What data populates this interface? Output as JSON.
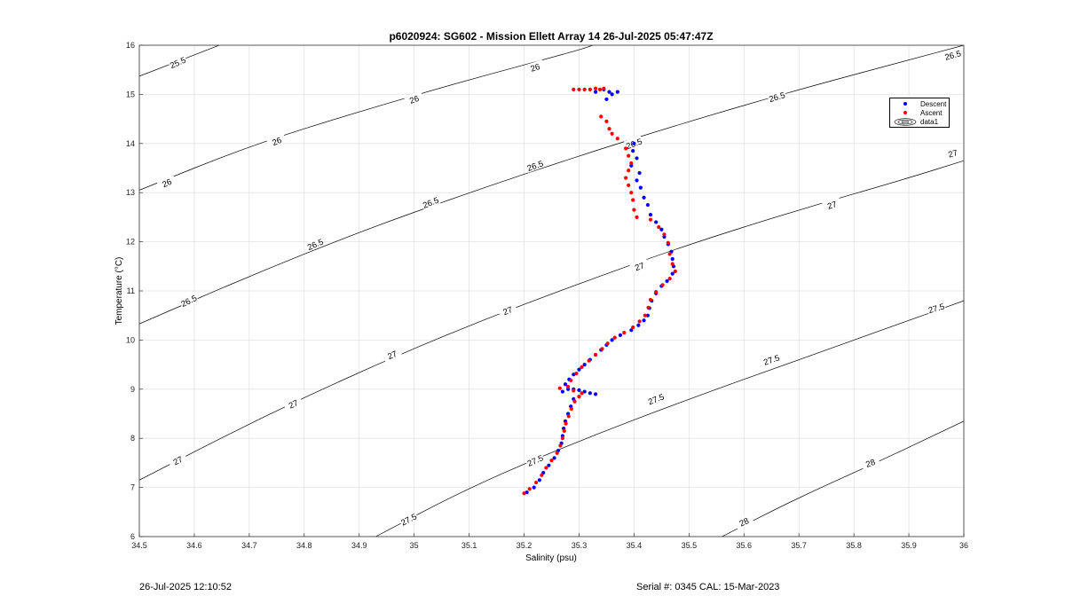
{
  "chart_data": {
    "type": "scatter",
    "title": "p6020924: SG602 - Mission Ellett Array 14 26-Jul-2025 05:47:47Z",
    "xlabel": "Salinity (psu)",
    "ylabel": "Temperature (°C)",
    "xlim": [
      34.5,
      36
    ],
    "ylim": [
      6,
      16
    ],
    "xticks": [
      "34.5",
      "34.6",
      "34.7",
      "34.8",
      "34.9",
      "35",
      "35.1",
      "35.2",
      "35.3",
      "35.4",
      "35.5",
      "35.6",
      "35.7",
      "35.8",
      "35.9",
      "36"
    ],
    "yticks": [
      "6",
      "7",
      "8",
      "9",
      "10",
      "11",
      "12",
      "13",
      "14",
      "15",
      "16"
    ],
    "grid": true,
    "legend_position": "top-right",
    "series": [
      {
        "name": "Descent",
        "color": "#0000ff",
        "points": [
          [
            35.33,
            15.05
          ],
          [
            35.345,
            15.1
          ],
          [
            35.355,
            15.05
          ],
          [
            35.37,
            15.05
          ],
          [
            35.36,
            15.0
          ],
          [
            35.35,
            14.9
          ],
          [
            35.4,
            14.0
          ],
          [
            35.398,
            13.85
          ],
          [
            35.405,
            13.7
          ],
          [
            35.395,
            13.55
          ],
          [
            35.41,
            13.4
          ],
          [
            35.405,
            13.25
          ],
          [
            35.412,
            13.1
          ],
          [
            35.418,
            12.9
          ],
          [
            35.425,
            12.75
          ],
          [
            35.43,
            12.55
          ],
          [
            35.44,
            12.4
          ],
          [
            35.45,
            12.25
          ],
          [
            35.455,
            12.1
          ],
          [
            35.462,
            11.95
          ],
          [
            35.468,
            11.8
          ],
          [
            35.47,
            11.65
          ],
          [
            35.472,
            11.5
          ],
          [
            35.47,
            11.35
          ],
          [
            35.46,
            11.2
          ],
          [
            35.45,
            11.1
          ],
          [
            35.44,
            10.95
          ],
          [
            35.432,
            10.8
          ],
          [
            35.428,
            10.65
          ],
          [
            35.425,
            10.5
          ],
          [
            35.418,
            10.4
          ],
          [
            35.408,
            10.3
          ],
          [
            35.395,
            10.2
          ],
          [
            35.375,
            10.1
          ],
          [
            35.36,
            10.0
          ],
          [
            35.35,
            9.9
          ],
          [
            35.34,
            9.8
          ],
          [
            35.33,
            9.7
          ],
          [
            35.32,
            9.6
          ],
          [
            35.31,
            9.5
          ],
          [
            35.3,
            9.4
          ],
          [
            35.29,
            9.3
          ],
          [
            35.282,
            9.2
          ],
          [
            35.275,
            9.1
          ],
          [
            35.28,
            9.0
          ],
          [
            35.29,
            9.0
          ],
          [
            35.3,
            8.98
          ],
          [
            35.31,
            8.95
          ],
          [
            35.32,
            8.92
          ],
          [
            35.33,
            8.9
          ],
          [
            35.27,
            8.95
          ],
          [
            35.29,
            8.8
          ],
          [
            35.285,
            8.65
          ],
          [
            35.28,
            8.5
          ],
          [
            35.275,
            8.35
          ],
          [
            35.272,
            8.2
          ],
          [
            35.27,
            8.05
          ],
          [
            35.268,
            7.9
          ],
          [
            35.262,
            7.75
          ],
          [
            35.255,
            7.6
          ],
          [
            35.245,
            7.45
          ],
          [
            35.235,
            7.3
          ],
          [
            35.228,
            7.15
          ],
          [
            35.218,
            7.0
          ],
          [
            35.205,
            6.9
          ]
        ]
      },
      {
        "name": "Ascent",
        "color": "#ff0000",
        "points": [
          [
            35.29,
            15.1
          ],
          [
            35.3,
            15.1
          ],
          [
            35.31,
            15.1
          ],
          [
            35.32,
            15.1
          ],
          [
            35.33,
            15.12
          ],
          [
            35.338,
            15.1
          ],
          [
            35.345,
            15.12
          ],
          [
            35.34,
            14.55
          ],
          [
            35.35,
            14.45
          ],
          [
            35.355,
            14.3
          ],
          [
            35.36,
            14.2
          ],
          [
            35.37,
            14.1
          ],
          [
            35.385,
            13.9
          ],
          [
            35.39,
            13.75
          ],
          [
            35.395,
            13.6
          ],
          [
            35.39,
            13.45
          ],
          [
            35.385,
            13.3
          ],
          [
            35.39,
            13.15
          ],
          [
            35.395,
            13.0
          ],
          [
            35.398,
            12.85
          ],
          [
            35.4,
            12.65
          ],
          [
            35.405,
            12.5
          ],
          [
            35.43,
            12.45
          ],
          [
            35.445,
            12.3
          ],
          [
            35.455,
            12.15
          ],
          [
            35.462,
            11.98
          ],
          [
            35.465,
            11.75
          ],
          [
            35.47,
            11.55
          ],
          [
            35.475,
            11.4
          ],
          [
            35.465,
            11.25
          ],
          [
            35.452,
            11.12
          ],
          [
            35.44,
            10.98
          ],
          [
            35.43,
            10.82
          ],
          [
            35.426,
            10.66
          ],
          [
            35.42,
            10.5
          ],
          [
            35.41,
            10.38
          ],
          [
            35.398,
            10.26
          ],
          [
            35.382,
            10.15
          ],
          [
            35.365,
            10.05
          ],
          [
            35.352,
            9.93
          ],
          [
            35.342,
            9.82
          ],
          [
            35.33,
            9.7
          ],
          [
            35.318,
            9.58
          ],
          [
            35.305,
            9.45
          ],
          [
            35.295,
            9.32
          ],
          [
            35.285,
            9.18
          ],
          [
            35.28,
            9.05
          ],
          [
            35.265,
            9.02
          ],
          [
            35.29,
            8.97
          ],
          [
            35.305,
            8.92
          ],
          [
            35.3,
            8.85
          ],
          [
            35.292,
            8.75
          ],
          [
            35.286,
            8.6
          ],
          [
            35.281,
            8.45
          ],
          [
            35.276,
            8.3
          ],
          [
            35.273,
            8.15
          ],
          [
            35.27,
            8.0
          ],
          [
            35.266,
            7.85
          ],
          [
            35.26,
            7.7
          ],
          [
            35.25,
            7.55
          ],
          [
            35.24,
            7.4
          ],
          [
            35.232,
            7.25
          ],
          [
            35.222,
            7.1
          ],
          [
            35.21,
            6.97
          ],
          [
            35.2,
            6.88
          ]
        ]
      }
    ],
    "contours": [
      {
        "label": "25.5",
        "points": [
          [
            34.5,
            15.37
          ],
          [
            34.65,
            16.02
          ]
        ],
        "labels_at": [
          [
            34.57,
            15.65,
            24
          ]
        ]
      },
      {
        "label": "26",
        "points": [
          [
            34.5,
            13.05
          ],
          [
            34.7,
            13.95
          ],
          [
            34.9,
            14.65
          ],
          [
            35.1,
            15.3
          ],
          [
            35.3,
            15.9
          ],
          [
            35.33,
            16.02
          ]
        ],
        "labels_at": [
          [
            34.55,
            13.2,
            24
          ],
          [
            34.75,
            14.05,
            22
          ],
          [
            35.0,
            14.9,
            20
          ],
          [
            35.22,
            15.55,
            18
          ]
        ]
      },
      {
        "label": "26.5",
        "points": [
          [
            34.5,
            10.33
          ],
          [
            34.7,
            11.3
          ],
          [
            34.9,
            12.2
          ],
          [
            35.1,
            13.0
          ],
          [
            35.3,
            13.75
          ],
          [
            35.5,
            14.45
          ],
          [
            35.7,
            15.1
          ],
          [
            35.9,
            15.7
          ],
          [
            36.0,
            16.0
          ]
        ],
        "labels_at": [
          [
            34.59,
            10.8,
            26
          ],
          [
            34.82,
            11.95,
            24
          ],
          [
            35.03,
            12.8,
            22
          ],
          [
            35.22,
            13.55,
            20
          ],
          [
            35.4,
            14.0,
            20
          ],
          [
            35.66,
            14.95,
            17
          ],
          [
            35.98,
            15.8,
            15
          ]
        ]
      },
      {
        "label": "27",
        "points": [
          [
            34.5,
            7.15
          ],
          [
            34.7,
            8.3
          ],
          [
            34.9,
            9.35
          ],
          [
            35.1,
            10.3
          ],
          [
            35.3,
            11.15
          ],
          [
            35.5,
            11.95
          ],
          [
            35.7,
            12.65
          ],
          [
            35.9,
            13.3
          ],
          [
            36.0,
            13.65
          ]
        ],
        "labels_at": [
          [
            34.57,
            7.55,
            27
          ],
          [
            34.78,
            8.7,
            25
          ],
          [
            34.96,
            9.7,
            23
          ],
          [
            35.17,
            10.6,
            21
          ],
          [
            35.41,
            11.5,
            20
          ],
          [
            35.76,
            12.75,
            17
          ],
          [
            35.98,
            13.8,
            15
          ]
        ]
      },
      {
        "label": "27.5",
        "points": [
          [
            34.93,
            6.0
          ],
          [
            35.1,
            7.0
          ],
          [
            35.3,
            7.95
          ],
          [
            35.5,
            8.8
          ],
          [
            35.7,
            9.6
          ],
          [
            35.9,
            10.4
          ],
          [
            36.0,
            10.8
          ]
        ],
        "labels_at": [
          [
            34.99,
            6.35,
            27
          ],
          [
            35.22,
            7.55,
            24
          ],
          [
            35.44,
            8.8,
            21
          ],
          [
            35.65,
            9.6,
            19
          ],
          [
            35.95,
            10.65,
            16
          ]
        ]
      },
      {
        "label": "28",
        "points": [
          [
            35.56,
            6.0
          ],
          [
            35.7,
            6.8
          ],
          [
            35.85,
            7.55
          ],
          [
            36.0,
            8.35
          ]
        ],
        "labels_at": [
          [
            35.6,
            6.3,
            25
          ],
          [
            35.83,
            7.5,
            20
          ]
        ]
      }
    ]
  },
  "legend": {
    "items": [
      {
        "label": "Descent",
        "color": "#0000ff"
      },
      {
        "label": "Ascent",
        "color": "#ff0000"
      },
      {
        "label": "data1"
      }
    ]
  },
  "footer": {
    "left": "26-Jul-2025 12:10:52",
    "right": "Serial #: 0345  CAL: 15-Mar-2023"
  }
}
